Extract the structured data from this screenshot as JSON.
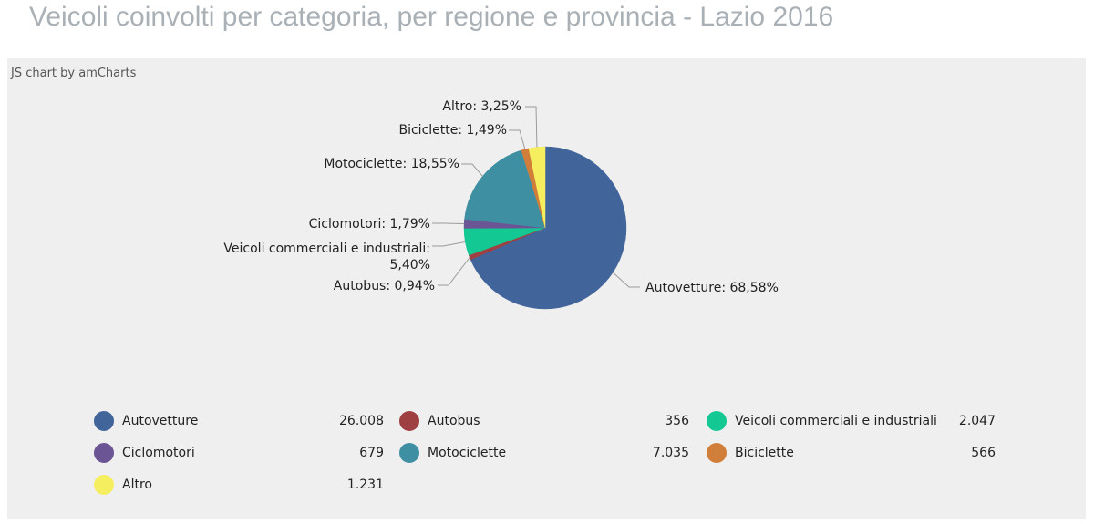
{
  "page": {
    "title": "Veicoli coinvolti per categoria, per regione e provincia - Lazio 2016",
    "credit": "JS chart by amCharts"
  },
  "chart_data": {
    "type": "pie",
    "categories": [
      "Autovetture",
      "Autobus",
      "Veicoli commerciali e industriali",
      "Ciclomotori",
      "Motociclette",
      "Biciclette",
      "Altro"
    ],
    "values": [
      26008,
      356,
      2047,
      679,
      7035,
      566,
      1231
    ],
    "value_labels": [
      "26.008",
      "356",
      "2.047",
      "679",
      "7.035",
      "566",
      "1.231"
    ],
    "percent_labels": [
      "68,58%",
      "0,94%",
      "5,40%",
      "1,79%",
      "18,55%",
      "1,49%",
      "3,25%"
    ],
    "colors": [
      "#41659b",
      "#9e4042",
      "#13c892",
      "#6b5594",
      "#3f8fa3",
      "#d07e3a",
      "#f5ee5e"
    ],
    "legend_position": "bottom"
  }
}
